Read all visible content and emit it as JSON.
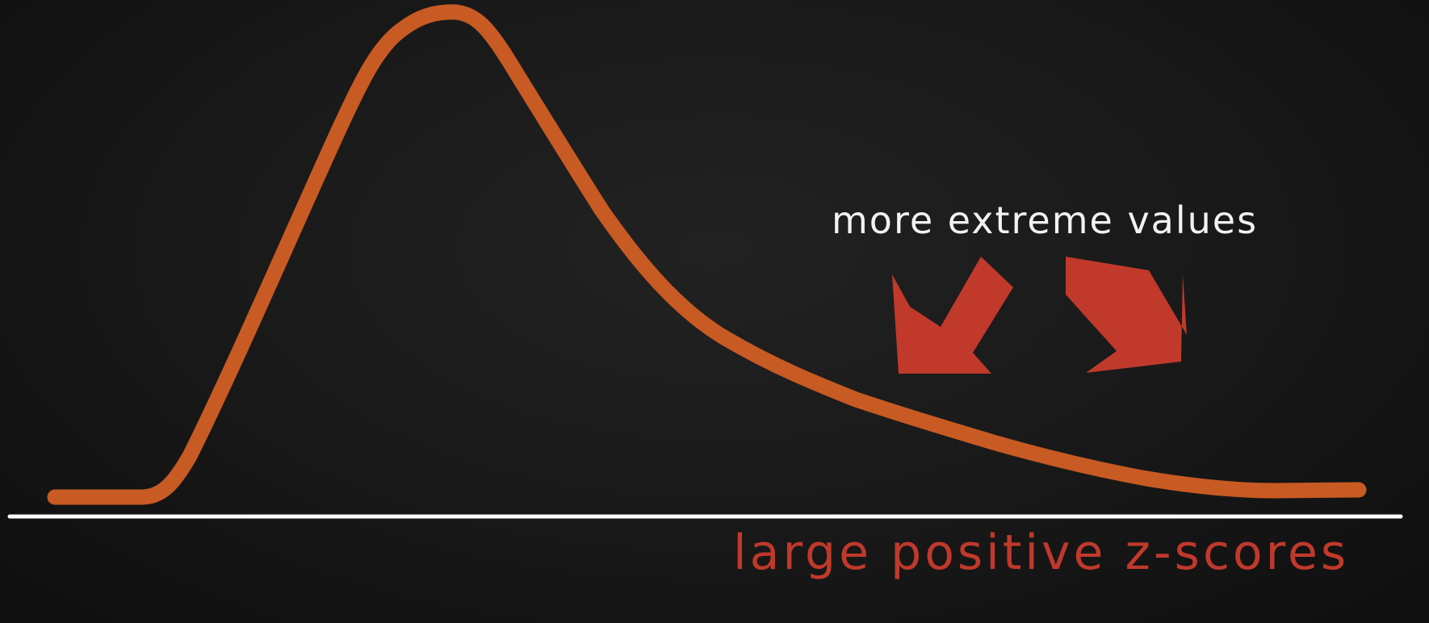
{
  "annotation": {
    "text": "more extreme values",
    "color": "#f2f2f2"
  },
  "axis_label": {
    "text": "large positive z-scores",
    "color": "#c0392b"
  },
  "colors": {
    "background": "#151515",
    "curve": "#c85a23",
    "arrows": "#c0392b",
    "axis_line": "#ffffff"
  },
  "shapes": {
    "curve": "right-skewed distribution curve",
    "arrows": [
      "arrow-down-left",
      "arrow-down-right"
    ]
  }
}
